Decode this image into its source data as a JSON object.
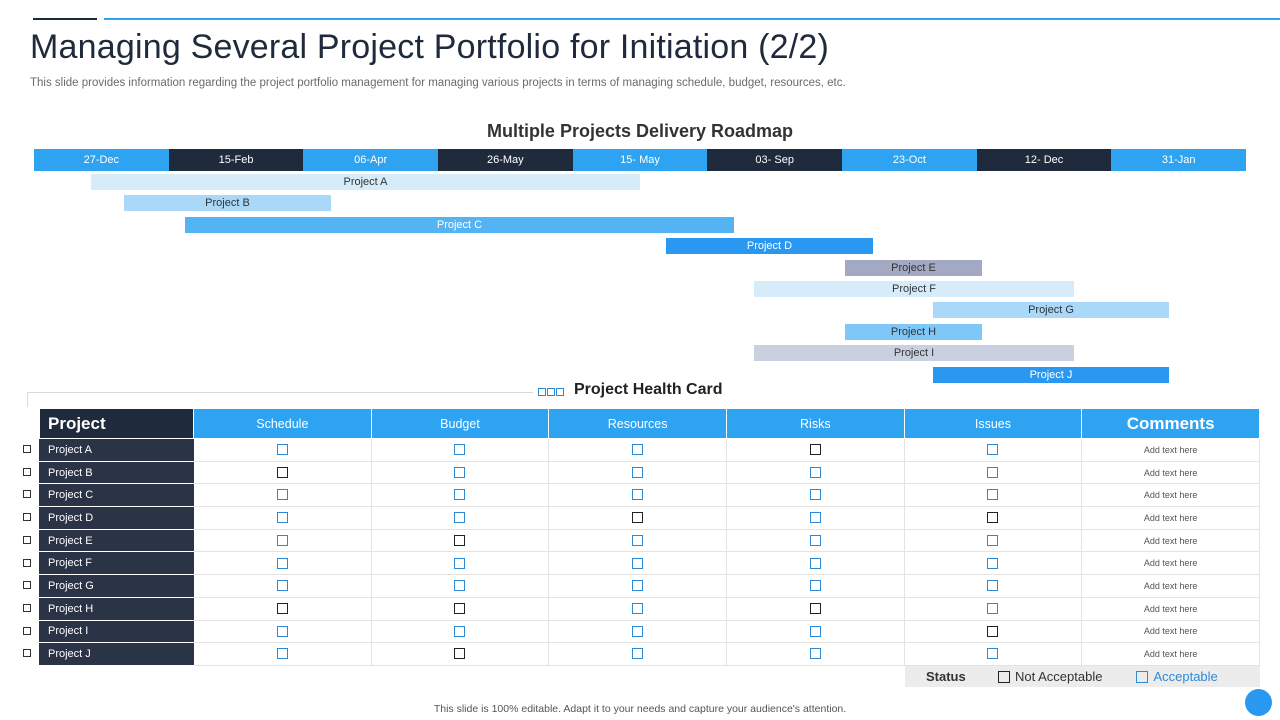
{
  "header": {
    "title": "Managing Several Project Portfolio for Initiation (2/2)",
    "subtitle": "This slide provides information regarding the project portfolio management for managing various projects in terms of managing schedule, budget, resources, etc."
  },
  "roadmap": {
    "title": "Multiple Projects Delivery Roadmap",
    "dates": [
      "27-Dec",
      "15-Feb",
      "06-Apr",
      "26-May",
      "15- May",
      "03- Sep",
      "23-Oct",
      "12- Dec",
      "31-Jan"
    ],
    "projects": [
      "Project A",
      "Project B",
      "Project C",
      "Project D",
      "Project E",
      "Project F",
      "Project G",
      "Project H",
      "Project I",
      "Project J"
    ]
  },
  "health_card": {
    "title": "Project Health Card",
    "columns": [
      "Project",
      "Schedule",
      "Budget",
      "Resources",
      "Risks",
      "Issues",
      "Comments"
    ],
    "rows": [
      {
        "name": "Project A",
        "status": [
          "acceptable",
          "acceptable",
          "acceptable",
          "not_acceptable",
          "acceptable"
        ],
        "comment": "Add text here"
      },
      {
        "name": "Project B",
        "status": [
          "not_acceptable",
          "acceptable",
          "acceptable",
          "acceptable",
          "acceptable"
        ],
        "comment": "Add text here"
      },
      {
        "name": "Project C",
        "status": [
          "acceptable",
          "acceptable",
          "acceptable",
          "acceptable",
          "acceptable"
        ],
        "comment": "Add text here"
      },
      {
        "name": "Project D",
        "status": [
          "acceptable",
          "acceptable",
          "not_acceptable",
          "acceptable",
          "not_acceptable"
        ],
        "comment": "Add text here"
      },
      {
        "name": "Project E",
        "status": [
          "acceptable",
          "not_acceptable",
          "acceptable",
          "acceptable",
          "acceptable"
        ],
        "comment": "Add text here"
      },
      {
        "name": "Project F",
        "status": [
          "acceptable",
          "acceptable",
          "acceptable",
          "acceptable",
          "acceptable"
        ],
        "comment": "Add text here"
      },
      {
        "name": "Project G",
        "status": [
          "acceptable",
          "acceptable",
          "acceptable",
          "acceptable",
          "acceptable"
        ],
        "comment": "Add text here"
      },
      {
        "name": "Project H",
        "status": [
          "not_acceptable",
          "not_acceptable",
          "acceptable",
          "not_acceptable",
          "acceptable"
        ],
        "comment": "Add text here"
      },
      {
        "name": "Project I",
        "status": [
          "acceptable",
          "acceptable",
          "acceptable",
          "acceptable",
          "not_acceptable"
        ],
        "comment": "Add text here"
      },
      {
        "name": "Project J",
        "status": [
          "acceptable",
          "not_acceptable",
          "acceptable",
          "acceptable",
          "acceptable"
        ],
        "comment": "Add text here"
      }
    ]
  },
  "legend": {
    "status_label": "Status",
    "not_acceptable": "Not Acceptable",
    "acceptable": "Acceptable"
  },
  "footer": "This slide is 100% editable.  Adapt it to your needs and capture your audience's attention.",
  "colors": {
    "primary_blue": "#2ea3f2",
    "dark_navy": "#1f2a3c",
    "acceptable": "#2e8ad6",
    "not_acceptable": "#222222"
  }
}
